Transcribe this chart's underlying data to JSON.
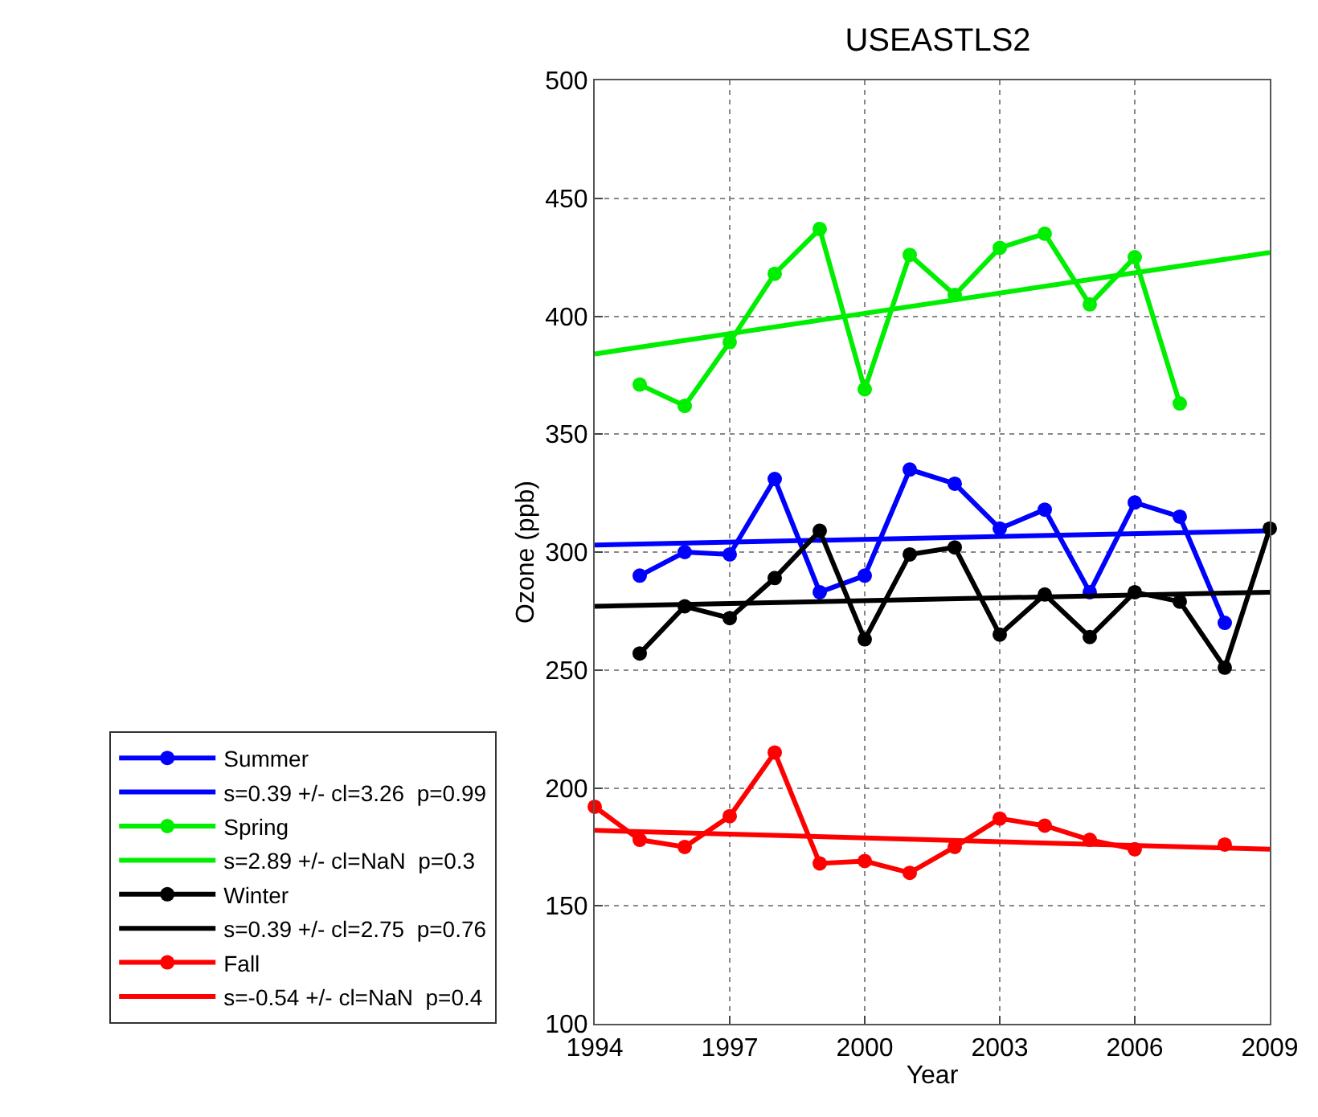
{
  "chart_data": {
    "type": "line",
    "title": "USEASTLS2",
    "xlabel": "Year",
    "ylabel": "Ozone (ppb)",
    "xlim": [
      1994,
      2009
    ],
    "xticks": [
      1994,
      1997,
      2000,
      2003,
      2006,
      2009
    ],
    "ylim": [
      100,
      500
    ],
    "yticks": [
      100,
      150,
      200,
      250,
      300,
      350,
      400,
      450,
      500
    ],
    "grid": true,
    "legend": "left",
    "marker": "circle",
    "line_style": "solid",
    "series": [
      {
        "name": "Summer",
        "color": "#0000ff",
        "x": [
          1995,
          1996,
          1997,
          1998,
          1999,
          2000,
          2001,
          2002,
          2003,
          2004,
          2005,
          2006,
          2007,
          2008
        ],
        "values": [
          290,
          300,
          299,
          331,
          283,
          290,
          335,
          329,
          310,
          318,
          283,
          321,
          315,
          270
        ]
      },
      {
        "name": "s=0.39 +/- cl=3.26  p=0.99",
        "color": "#0000ff",
        "marker": "none",
        "x": [
          1994,
          2009
        ],
        "values": [
          303,
          309
        ]
      },
      {
        "name": "Spring",
        "color": "#00ee00",
        "x": [
          1995,
          1996,
          1997,
          1998,
          1999,
          2000,
          2001,
          2002,
          2003,
          2004,
          2005,
          2006,
          2007
        ],
        "values": [
          371,
          362,
          389,
          418,
          437,
          369,
          426,
          409,
          429,
          435,
          405,
          425,
          363
        ]
      },
      {
        "name": "s=2.89 +/- cl=NaN  p=0.3",
        "color": "#00ee00",
        "marker": "none",
        "x": [
          1994,
          2009
        ],
        "values": [
          384,
          427
        ]
      },
      {
        "name": "Winter",
        "color": "#000000",
        "x": [
          1995,
          1996,
          1997,
          1998,
          1999,
          2000,
          2001,
          2002,
          2003,
          2004,
          2005,
          2006,
          2007,
          2008,
          2009
        ],
        "values": [
          257,
          277,
          272,
          289,
          309,
          263,
          299,
          302,
          265,
          282,
          264,
          283,
          279,
          251,
          310
        ]
      },
      {
        "name": "s=0.39 +/- cl=2.75  p=0.76",
        "color": "#000000",
        "marker": "none",
        "x": [
          1994,
          2009
        ],
        "values": [
          277,
          283
        ]
      },
      {
        "name": "Fall",
        "color": "#ff0000",
        "x": [
          1994,
          1995,
          1996,
          1997,
          1998,
          1999,
          2000,
          2001,
          2002,
          2003,
          2004,
          2005,
          2006,
          2007,
          2008
        ],
        "values": [
          192,
          178,
          175,
          188,
          215,
          168,
          169,
          164,
          175,
          187,
          184,
          178,
          174,
          null,
          176
        ]
      },
      {
        "name": "s=-0.54 +/- cl=NaN  p=0.4",
        "color": "#ff0000",
        "marker": "none",
        "x": [
          1994,
          2009
        ],
        "values": [
          182,
          174
        ]
      }
    ]
  }
}
